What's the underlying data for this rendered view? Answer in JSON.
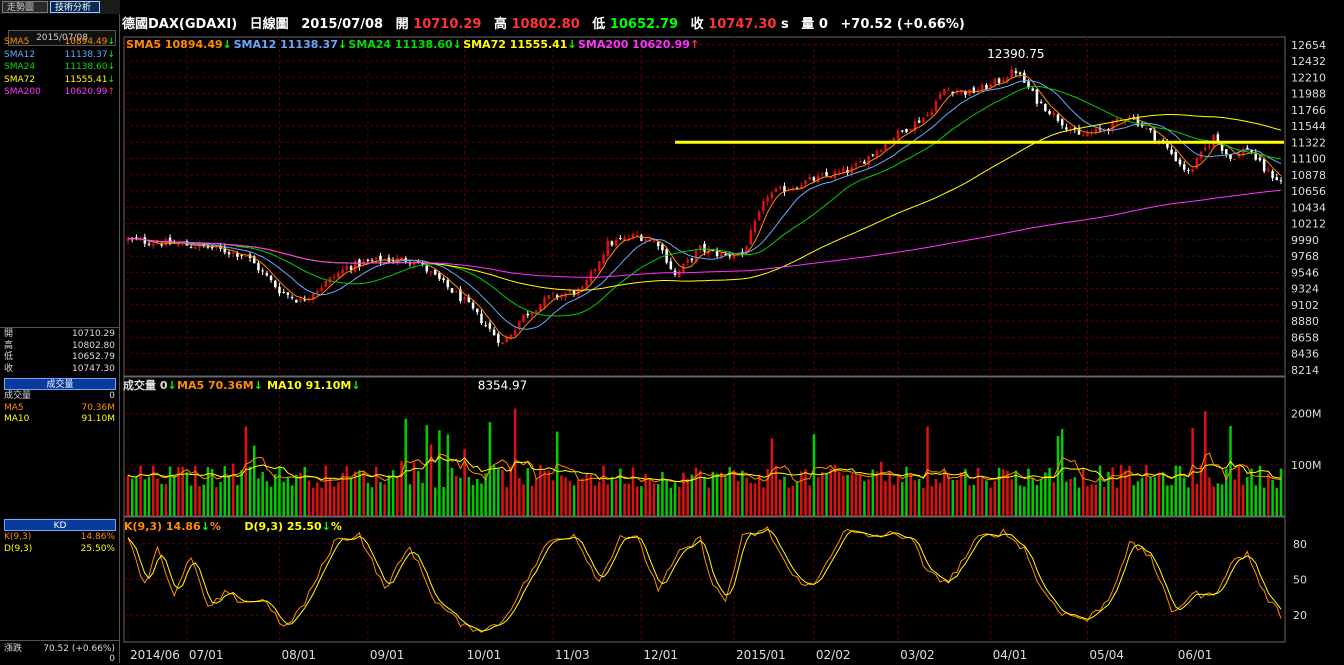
{
  "tabs": [
    "走勢圖",
    "技術分析"
  ],
  "left_panel": {
    "date": "2015/07/08",
    "ma_list": [
      {
        "name": "SMA5",
        "value": "10894.49",
        "color": "#ff8c00",
        "arrow": "↓",
        "arrow_color": "#00ff00"
      },
      {
        "name": "SMA12",
        "value": "11138.37",
        "color": "#66aaff",
        "arrow": "↓",
        "arrow_color": "#00ff00"
      },
      {
        "name": "SMA24",
        "value": "11138.60",
        "color": "#00dd00",
        "arrow": "↓",
        "arrow_color": "#00ff00"
      },
      {
        "name": "SMA72",
        "value": "11555.41",
        "color": "#ffff00",
        "arrow": "↓",
        "arrow_color": "#00ff00"
      },
      {
        "name": "SMA200",
        "value": "10620.99",
        "color": "#ff33ff",
        "arrow": "↑",
        "arrow_color": "#ff3333"
      }
    ],
    "ohlc": [
      {
        "label": "開",
        "value": "10710.29"
      },
      {
        "label": "高",
        "value": "10802.80"
      },
      {
        "label": "低",
        "value": "10652.79"
      },
      {
        "label": "收",
        "value": "10747.30"
      }
    ],
    "volume_header": "成交量",
    "volume_rows": [
      {
        "label": "成交量",
        "value": "0",
        "color": "#ddd"
      },
      {
        "label": "MA5",
        "value": "70.36M",
        "color": "#ff8c00"
      },
      {
        "label": "MA10",
        "value": "91.10M",
        "color": "#ffff00"
      }
    ],
    "kd_header": "KD",
    "kd_rows": [
      {
        "label": "K(9,3)",
        "value": "14.86%",
        "color": "#ff8c00"
      },
      {
        "label": "D(9,3)",
        "value": "25.50%",
        "color": "#ffff00"
      }
    ],
    "change_label": "漲跌",
    "change_value": "70.52 (+0.66%)",
    "bottom_value": "0"
  },
  "header": {
    "name": "德國DAX(GDAXI)",
    "period": "日線圖",
    "date": "2015/07/08",
    "open_label": "開",
    "open": "10710.29",
    "high_label": "高",
    "high": "10802.80",
    "low_label": "低",
    "low": "10652.79",
    "close_label": "收",
    "close": "10747.30",
    "close_suffix": "s",
    "vol_label": "量",
    "vol": "0",
    "change": "+70.52 (+0.66%)"
  },
  "ma_legend": [
    {
      "text": "SMA5 10894.49",
      "color": "#ff8c00",
      "arrow": "↓",
      "arrow_color": "#00ff00"
    },
    {
      "text": "SMA12 11138.37",
      "color": "#66aaff",
      "arrow": "↓",
      "arrow_color": "#00ff00"
    },
    {
      "text": "SMA24 11138.60",
      "color": "#00dd00",
      "arrow": "↓",
      "arrow_color": "#00ff00"
    },
    {
      "text": "SMA72 11555.41",
      "color": "#ffff00",
      "arrow": "↓",
      "arrow_color": "#00ff00"
    },
    {
      "text": "SMA200 10620.99",
      "color": "#ff33ff",
      "arrow": "↑",
      "arrow_color": "#ff3333"
    }
  ],
  "vol_legend": [
    {
      "text": "成交量 0",
      "color": "#dddddd",
      "arrow": "↓",
      "arrow_color": "#00ff00"
    },
    {
      "text": "MA5 70.36M",
      "color": "#ff8c00",
      "arrow": "↓",
      "arrow_color": "#00ff00"
    },
    {
      "text": "MA10 91.10M",
      "color": "#ffff00",
      "arrow": "↓",
      "arrow_color": "#00ff00"
    }
  ],
  "kd_legend": [
    {
      "text": "K(9,3) 14.86",
      "color": "#ff8c00",
      "arrow": "↓",
      "arrow_color": "#00ff00",
      "suffix": "%"
    },
    {
      "text": "D(9,3) 25.50",
      "color": "#ffff00",
      "arrow": "↓",
      "arrow_color": "#00ff00",
      "suffix": "%"
    }
  ],
  "colors": {
    "up": "#dd1111",
    "down": "#ffffff",
    "vol_up": "#dd1111",
    "vol_down": "#00cc00",
    "grid": "#5a0000",
    "axis": "#bbbbbb",
    "support_line": "#ffff00"
  },
  "chart_data": {
    "type": "candlestick",
    "price_axis_ticks": [
      12654,
      12432,
      12210,
      11988,
      11766,
      11544,
      11322,
      11100,
      10878,
      10656,
      10434,
      10212,
      9990,
      9768,
      9546,
      9324,
      9102,
      8880,
      8658,
      8436,
      8214
    ],
    "price_range": [
      8130,
      12760
    ],
    "x_tick_labels": [
      "2014/06",
      "07/01",
      "08/01",
      "09/01",
      "10/01",
      "11/03",
      "12/01",
      "2015/01",
      "02/02",
      "03/02",
      "04/01",
      "05/04",
      "06/01"
    ],
    "x_tick_positions": [
      0,
      14,
      36,
      57,
      80,
      101,
      122,
      144,
      163,
      183,
      205,
      228,
      249
    ],
    "n_bars": 275,
    "annotations": [
      {
        "text": "12390.75",
        "at_index": 211,
        "value": 12390.75,
        "position": "above"
      },
      {
        "text": "8354.97",
        "at_index": 89,
        "value": 8354.97,
        "position": "below"
      }
    ],
    "support_line": {
      "value": 11322,
      "from_index": 130
    },
    "price_anchors": [
      [
        0,
        9990
      ],
      [
        8,
        9950
      ],
      [
        18,
        9900
      ],
      [
        28,
        9780
      ],
      [
        36,
        9300
      ],
      [
        41,
        9150
      ],
      [
        52,
        9620
      ],
      [
        60,
        9720
      ],
      [
        68,
        9720
      ],
      [
        80,
        9150
      ],
      [
        89,
        8570
      ],
      [
        94,
        8950
      ],
      [
        100,
        9200
      ],
      [
        108,
        9300
      ],
      [
        114,
        9930
      ],
      [
        121,
        10050
      ],
      [
        126,
        9950
      ],
      [
        130,
        9500
      ],
      [
        136,
        9870
      ],
      [
        141,
        9780
      ],
      [
        146,
        9800
      ],
      [
        152,
        10600
      ],
      [
        162,
        10800
      ],
      [
        172,
        10950
      ],
      [
        182,
        11400
      ],
      [
        190,
        11700
      ],
      [
        194,
        12050
      ],
      [
        200,
        12000
      ],
      [
        205,
        12100
      ],
      [
        211,
        12300
      ],
      [
        216,
        11900
      ],
      [
        220,
        11700
      ],
      [
        226,
        11400
      ],
      [
        232,
        11500
      ],
      [
        238,
        11700
      ],
      [
        246,
        11300
      ],
      [
        252,
        10900
      ],
      [
        258,
        11400
      ],
      [
        262,
        11100
      ],
      [
        266,
        11250
      ],
      [
        270,
        10950
      ],
      [
        275,
        10747
      ]
    ],
    "volume_axis_ticks": [
      "200M",
      "100M"
    ],
    "volume_range": [
      0,
      260
    ],
    "kd_axis_ticks": [
      80,
      50,
      20
    ],
    "kd_range": [
      0,
      100
    ],
    "kd_anchors": [
      [
        0,
        88
      ],
      [
        4,
        45
      ],
      [
        7,
        78
      ],
      [
        11,
        35
      ],
      [
        15,
        70
      ],
      [
        19,
        25
      ],
      [
        23,
        38
      ],
      [
        27,
        32
      ],
      [
        33,
        32
      ],
      [
        37,
        8
      ],
      [
        42,
        30
      ],
      [
        49,
        82
      ],
      [
        55,
        88
      ],
      [
        61,
        42
      ],
      [
        67,
        78
      ],
      [
        73,
        32
      ],
      [
        80,
        10
      ],
      [
        85,
        8
      ],
      [
        89,
        15
      ],
      [
        94,
        45
      ],
      [
        100,
        82
      ],
      [
        106,
        88
      ],
      [
        112,
        48
      ],
      [
        117,
        87
      ],
      [
        121,
        84
      ],
      [
        126,
        42
      ],
      [
        131,
        72
      ],
      [
        136,
        84
      ],
      [
        139,
        45
      ],
      [
        142,
        32
      ],
      [
        146,
        85
      ],
      [
        152,
        92
      ],
      [
        158,
        52
      ],
      [
        163,
        44
      ],
      [
        170,
        91
      ],
      [
        176,
        86
      ],
      [
        181,
        88
      ],
      [
        186,
        86
      ],
      [
        190,
        55
      ],
      [
        195,
        48
      ],
      [
        202,
        85
      ],
      [
        208,
        90
      ],
      [
        213,
        76
      ],
      [
        217,
        42
      ],
      [
        222,
        22
      ],
      [
        228,
        16
      ],
      [
        233,
        33
      ],
      [
        238,
        80
      ],
      [
        243,
        70
      ],
      [
        248,
        22
      ],
      [
        253,
        38
      ],
      [
        258,
        36
      ],
      [
        262,
        63
      ],
      [
        266,
        72
      ],
      [
        270,
        38
      ],
      [
        275,
        15
      ]
    ]
  }
}
